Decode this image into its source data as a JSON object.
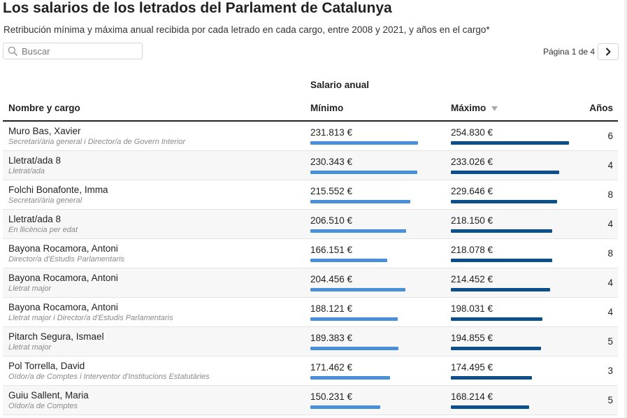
{
  "header": {
    "title": "Los salarios de los letrados del Parlament de Catalunya",
    "subtitle": "Retribución mínima y máxima anual recibida por cada letrado en cada cargo, entre 2008 y 2021, y años en el cargo*"
  },
  "search": {
    "placeholder": "Buscar",
    "value": "",
    "icon": "search-icon"
  },
  "pagination": {
    "label": "Página 1 de 4",
    "current": 1,
    "total": 4,
    "next_icon": "chevron-right-icon"
  },
  "table": {
    "group_header": "Salario anual",
    "columns": {
      "name": "Nombre y cargo",
      "min": "Mínimo",
      "max": "Máximo",
      "years": "Años"
    },
    "sort": {
      "column": "max",
      "direction": "desc",
      "icon": "sort-desc-icon"
    },
    "colors": {
      "min_bar": "#4a90d9",
      "max_bar": "#0d4f8b"
    },
    "rows": [
      {
        "name": "Muro Bas, Xavier",
        "role": "Secretari/ària general i Director/a de Govern Interior",
        "min_label": "231.813 €",
        "max_label": "254.830 €",
        "min": 231813,
        "max": 254830,
        "years": "6"
      },
      {
        "name": "Lletrat/ada 8",
        "role": "Lletrat/ada",
        "min_label": "230.343 €",
        "max_label": "233.026 €",
        "min": 230343,
        "max": 233026,
        "years": "4"
      },
      {
        "name": "Folchi Bonafonte, Imma",
        "role": "Secretari/ària general",
        "min_label": "215.552 €",
        "max_label": "229.646 €",
        "min": 215552,
        "max": 229646,
        "years": "8"
      },
      {
        "name": "Lletrat/ada 8",
        "role": "En llicència per edat",
        "min_label": "206.510 €",
        "max_label": "218.150 €",
        "min": 206510,
        "max": 218150,
        "years": "4"
      },
      {
        "name": "Bayona Rocamora, Antoni",
        "role": "Director/a d'Estudis Parlamentaris",
        "min_label": "166.151 €",
        "max_label": "218.078 €",
        "min": 166151,
        "max": 218078,
        "years": "8"
      },
      {
        "name": "Bayona Rocamora, Antoni",
        "role": "Lletrat major",
        "min_label": "204.456 €",
        "max_label": "214.452 €",
        "min": 204456,
        "max": 214452,
        "years": "4"
      },
      {
        "name": "Bayona Rocamora, Antoni",
        "role": "Lletrat major i Director/a d'Estudis Parlamentaris",
        "min_label": "188.121 €",
        "max_label": "198.031 €",
        "min": 188121,
        "max": 198031,
        "years": "4"
      },
      {
        "name": "Pitarch Segura, Ismael",
        "role": "Lletrat major",
        "min_label": "189.383 €",
        "max_label": "194.855 €",
        "min": 189383,
        "max": 194855,
        "years": "5"
      },
      {
        "name": "Pol Torrella, David",
        "role": "Oïdor/a de Comptes i Interventor d'Institucions Estatutàries",
        "min_label": "171.462 €",
        "max_label": "174.495 €",
        "min": 171462,
        "max": 174495,
        "years": "3"
      },
      {
        "name": "Guiu Sallent, Maria",
        "role": "Oïdor/a de Comptes",
        "min_label": "150.231 €",
        "max_label": "168.214 €",
        "min": 150231,
        "max": 168214,
        "years": "5"
      }
    ]
  }
}
